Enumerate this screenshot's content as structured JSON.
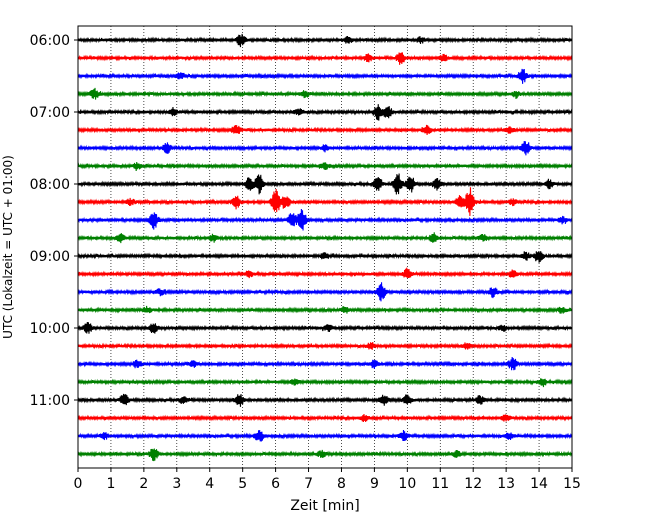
{
  "chart_data": {
    "type": "line",
    "title": "",
    "xlabel": "Zeit  [min]",
    "ylabel": "UTC (Lokalzeit = UTC + 01:00)",
    "xlim": [
      0,
      15
    ],
    "x_ticks": [
      "0",
      "1",
      "2",
      "3",
      "4",
      "5",
      "6",
      "7",
      "8",
      "9",
      "10",
      "11",
      "12",
      "13",
      "14",
      "15"
    ],
    "y_tick_labels": [
      "06:00",
      "07:00",
      "08:00",
      "09:00",
      "10:00",
      "11:00"
    ],
    "grid": "vertical-dotted",
    "line_colors": [
      "#000000",
      "#ff0000",
      "#0000ff",
      "#008000"
    ],
    "traces": [
      {
        "start": "06:00",
        "color": "#000000",
        "events": [
          [
            4.95,
            6
          ],
          [
            8.2,
            3
          ],
          [
            10.4,
            3
          ]
        ]
      },
      {
        "start": "06:15",
        "color": "#ff0000",
        "events": [
          [
            8.8,
            4
          ],
          [
            9.8,
            6
          ],
          [
            11.1,
            3
          ]
        ]
      },
      {
        "start": "06:30",
        "color": "#0000ff",
        "events": [
          [
            13.5,
            7
          ],
          [
            3.1,
            3
          ]
        ]
      },
      {
        "start": "06:45",
        "color": "#008000",
        "events": [
          [
            0.5,
            5
          ],
          [
            6.9,
            3
          ],
          [
            13.3,
            3
          ]
        ]
      },
      {
        "start": "07:00",
        "color": "#000000",
        "events": [
          [
            9.1,
            8
          ],
          [
            9.4,
            6
          ],
          [
            2.9,
            3
          ],
          [
            6.7,
            3
          ]
        ]
      },
      {
        "start": "07:15",
        "color": "#ff0000",
        "events": [
          [
            4.8,
            5
          ],
          [
            10.6,
            4
          ],
          [
            13.1,
            3
          ]
        ]
      },
      {
        "start": "07:30",
        "color": "#0000ff",
        "events": [
          [
            2.7,
            5
          ],
          [
            13.6,
            7
          ],
          [
            7.5,
            3
          ]
        ]
      },
      {
        "start": "07:45",
        "color": "#008000",
        "events": [
          [
            1.8,
            3
          ],
          [
            7.5,
            3
          ]
        ]
      },
      {
        "start": "08:00",
        "color": "#000000",
        "events": [
          [
            5.5,
            9
          ],
          [
            5.2,
            6
          ],
          [
            9.1,
            7
          ],
          [
            9.7,
            11
          ],
          [
            10.1,
            8
          ],
          [
            10.9,
            6
          ],
          [
            14.3,
            4
          ]
        ]
      },
      {
        "start": "08:15",
        "color": "#ff0000",
        "events": [
          [
            4.8,
            6
          ],
          [
            6.0,
            13
          ],
          [
            6.3,
            7
          ],
          [
            11.9,
            14
          ],
          [
            11.6,
            7
          ],
          [
            13.2,
            3
          ],
          [
            1.6,
            3
          ]
        ]
      },
      {
        "start": "08:30",
        "color": "#0000ff",
        "events": [
          [
            2.3,
            10
          ],
          [
            6.8,
            11
          ],
          [
            6.5,
            7
          ],
          [
            14.7,
            3
          ]
        ]
      },
      {
        "start": "08:45",
        "color": "#008000",
        "events": [
          [
            1.3,
            4
          ],
          [
            4.1,
            3
          ],
          [
            10.8,
            5
          ],
          [
            12.3,
            3
          ]
        ]
      },
      {
        "start": "09:00",
        "color": "#000000",
        "events": [
          [
            14.0,
            6
          ],
          [
            13.6,
            4
          ],
          [
            7.5,
            3
          ]
        ]
      },
      {
        "start": "09:15",
        "color": "#ff0000",
        "events": [
          [
            10.0,
            5
          ],
          [
            13.2,
            4
          ],
          [
            5.2,
            3
          ]
        ]
      },
      {
        "start": "09:30",
        "color": "#0000ff",
        "events": [
          [
            9.2,
            9
          ],
          [
            12.6,
            5
          ],
          [
            2.5,
            3
          ]
        ]
      },
      {
        "start": "09:45",
        "color": "#008000",
        "events": [
          [
            2.1,
            3
          ],
          [
            8.1,
            3
          ],
          [
            14.7,
            3
          ]
        ]
      },
      {
        "start": "10:00",
        "color": "#000000",
        "events": [
          [
            0.3,
            5
          ],
          [
            2.3,
            5
          ],
          [
            7.6,
            3
          ],
          [
            12.9,
            3
          ]
        ]
      },
      {
        "start": "10:15",
        "color": "#ff0000",
        "events": [
          [
            8.9,
            3
          ],
          [
            11.8,
            3
          ]
        ]
      },
      {
        "start": "10:30",
        "color": "#0000ff",
        "events": [
          [
            1.8,
            4
          ],
          [
            9.0,
            4
          ],
          [
            13.2,
            6
          ],
          [
            3.5,
            3
          ]
        ]
      },
      {
        "start": "10:45",
        "color": "#008000",
        "events": [
          [
            14.1,
            4
          ],
          [
            6.6,
            3
          ]
        ]
      },
      {
        "start": "11:00",
        "color": "#000000",
        "events": [
          [
            1.4,
            6
          ],
          [
            4.9,
            6
          ],
          [
            9.3,
            5
          ],
          [
            10.0,
            5
          ],
          [
            12.2,
            4
          ],
          [
            3.2,
            3
          ]
        ]
      },
      {
        "start": "11:15",
        "color": "#ff0000",
        "events": [
          [
            8.7,
            3
          ],
          [
            13.0,
            3
          ]
        ]
      },
      {
        "start": "11:30",
        "color": "#0000ff",
        "events": [
          [
            5.5,
            6
          ],
          [
            9.9,
            5
          ],
          [
            0.8,
            3
          ],
          [
            13.1,
            3
          ]
        ]
      },
      {
        "start": "11:45",
        "color": "#008000",
        "events": [
          [
            2.3,
            6
          ],
          [
            7.4,
            3
          ],
          [
            11.5,
            3
          ]
        ]
      }
    ]
  }
}
